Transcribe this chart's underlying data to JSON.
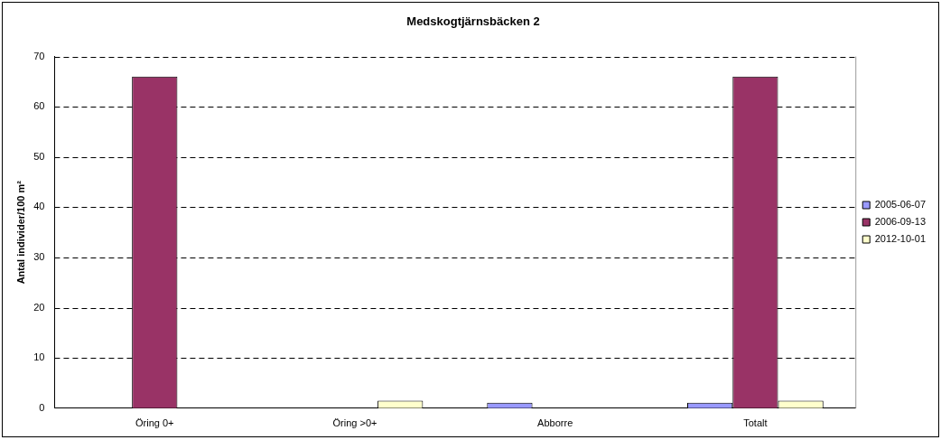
{
  "chart_data": {
    "type": "bar",
    "title": "Medskogtjärnsbäcken 2",
    "ylabel": "Antal individer/100 m²",
    "categories": [
      "Öring 0+",
      "Öring >0+",
      "Abborre",
      "Totalt"
    ],
    "series": [
      {
        "name": "2005-06-07",
        "color": "#9999ff",
        "values": [
          0,
          0,
          1.1,
          1.1
        ]
      },
      {
        "name": "2006-09-13",
        "color": "#993366",
        "values": [
          66,
          0,
          0,
          66
        ]
      },
      {
        "name": "2012-10-01",
        "color": "#ffffcc",
        "values": [
          0,
          1.5,
          0,
          1.5
        ]
      }
    ],
    "ylim": [
      0,
      70
    ],
    "yticks": [
      0,
      10,
      20,
      30,
      40,
      50,
      60,
      70
    ],
    "grid": "y",
    "legend": "right"
  }
}
